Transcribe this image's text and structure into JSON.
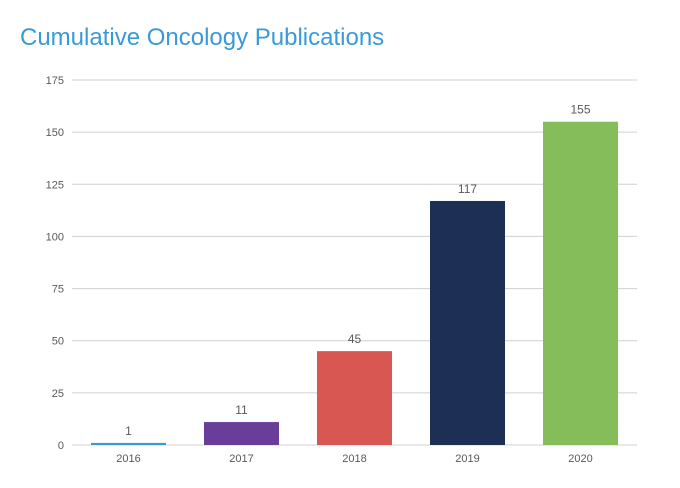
{
  "chart_data": {
    "type": "bar",
    "title": "Cumulative Oncology Publications",
    "categories": [
      "2016",
      "2017",
      "2018",
      "2019",
      "2020"
    ],
    "values": [
      1,
      11,
      45,
      117,
      155
    ],
    "colors": [
      "#3a9ad9",
      "#6a3d9a",
      "#d95753",
      "#1e2f55",
      "#84bd5a"
    ],
    "ylim": [
      0,
      175
    ],
    "yticks": [
      0,
      25,
      50,
      75,
      100,
      125,
      150,
      175
    ],
    "xlabel": "",
    "ylabel": "",
    "grid": true,
    "legend": "none",
    "data_labels": true,
    "gridline_color": "#d0d0d0",
    "label_color": "#595959",
    "title_color": "#3a9ad9"
  }
}
